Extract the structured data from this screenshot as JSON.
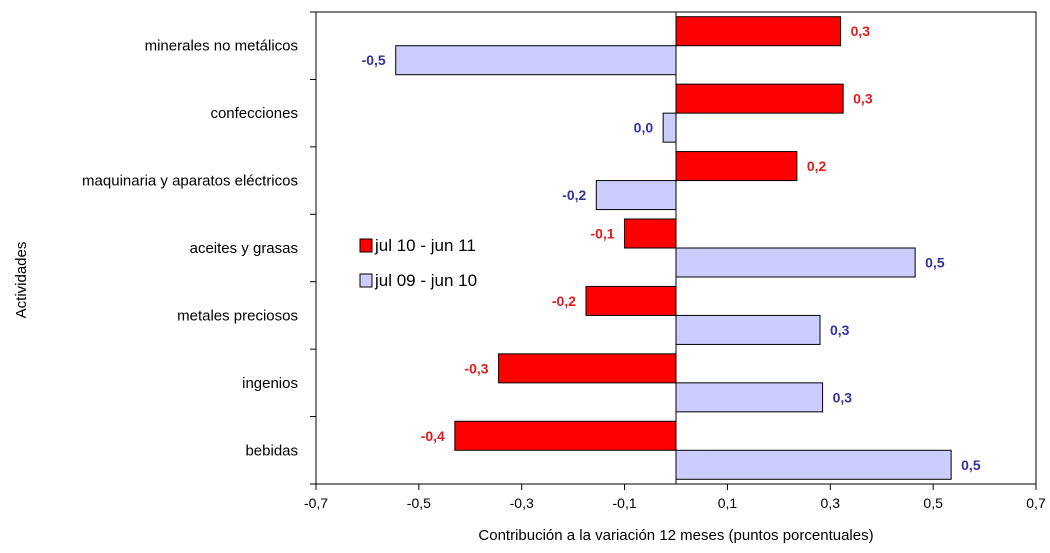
{
  "chart_data": {
    "type": "bar",
    "orientation": "horizontal",
    "categories": [
      "minerales no metálicos",
      "confecciones",
      "maquinaria y aparatos eléctricos",
      "aceites y grasas",
      "metales preciosos",
      "ingenios",
      "bebidas"
    ],
    "series": [
      {
        "name": "jul 10 - jun 11",
        "color": "#ff0000",
        "label_color": "#e31a1c",
        "values": [
          0.32,
          0.325,
          0.235,
          -0.1,
          -0.175,
          -0.345,
          -0.43
        ],
        "value_labels": [
          "0,3",
          "0,3",
          "0,2",
          "-0,1",
          "-0,2",
          "-0,3",
          "-0,4"
        ]
      },
      {
        "name": "jul 09 - jun 10",
        "color": "#ccccff",
        "label_color": "#333399",
        "values": [
          -0.545,
          -0.025,
          -0.155,
          0.465,
          0.28,
          0.285,
          0.535
        ],
        "value_labels": [
          "-0,5",
          "0,0",
          "-0,2",
          "0,5",
          "0,3",
          "0,3",
          "0,5"
        ]
      }
    ],
    "xlim": [
      -0.7,
      0.7
    ],
    "xticks": [
      -0.7,
      -0.5,
      -0.3,
      -0.1,
      0.1,
      0.3,
      0.5,
      0.7
    ],
    "xtick_labels": [
      "-0,7",
      "-0,5",
      "-0,3",
      "-0,1",
      "0,1",
      "0,3",
      "0,5",
      "0,7"
    ],
    "xlabel": "Contribución a la variación 12 meses (puntos porcentuales)",
    "ylabel": "Actividades",
    "grid": false,
    "legend_position": "center-left"
  }
}
